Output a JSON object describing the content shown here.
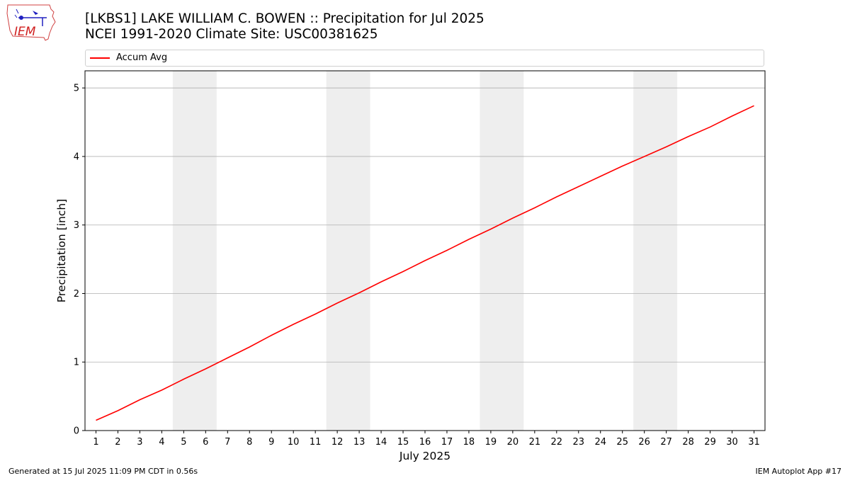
{
  "header": {
    "title_line1": "[LKBS1] LAKE WILLIAM C. BOWEN :: Precipitation for Jul 2025",
    "title_line2": "NCEI 1991-2020 Climate Site: USC00381625",
    "logo_text": "IEM"
  },
  "footer": {
    "generated": "Generated at 15 Jul 2025 11:09 PM CDT in 0.56s",
    "app": "IEM Autoplot App #17"
  },
  "colors": {
    "line": "#ff0000",
    "weekend_band": "#eeeeee",
    "grid": "#b0b0b0"
  },
  "chart_data": {
    "type": "line",
    "title": "[LKBS1] LAKE WILLIAM C. BOWEN :: Precipitation for Jul 2025",
    "subtitle": "NCEI 1991-2020 Climate Site: USC00381625",
    "xlabel": "July 2025",
    "ylabel": "Precipitation [inch]",
    "xlim": [
      0.5,
      31.5
    ],
    "ylim": [
      0,
      5.25
    ],
    "yticks": [
      0,
      1,
      2,
      3,
      4,
      5
    ],
    "grid": "y-axis",
    "legend_placement": "top",
    "x": [
      1,
      2,
      3,
      4,
      5,
      6,
      7,
      8,
      9,
      10,
      11,
      12,
      13,
      14,
      15,
      16,
      17,
      18,
      19,
      20,
      21,
      22,
      23,
      24,
      25,
      26,
      27,
      28,
      29,
      30,
      31
    ],
    "series": [
      {
        "name": "Accum Avg",
        "color": "#ff0000",
        "values": [
          0.15,
          0.29,
          0.45,
          0.59,
          0.75,
          0.9,
          1.06,
          1.22,
          1.39,
          1.55,
          1.7,
          1.86,
          2.01,
          2.17,
          2.32,
          2.48,
          2.63,
          2.79,
          2.94,
          3.1,
          3.25,
          3.41,
          3.56,
          3.71,
          3.86,
          4.0,
          4.14,
          4.29,
          4.43,
          4.59,
          4.74
        ]
      }
    ],
    "weekend_bands": [
      [
        4.5,
        6.5
      ],
      [
        11.5,
        13.5
      ],
      [
        18.5,
        20.5
      ],
      [
        25.5,
        27.5
      ]
    ]
  }
}
